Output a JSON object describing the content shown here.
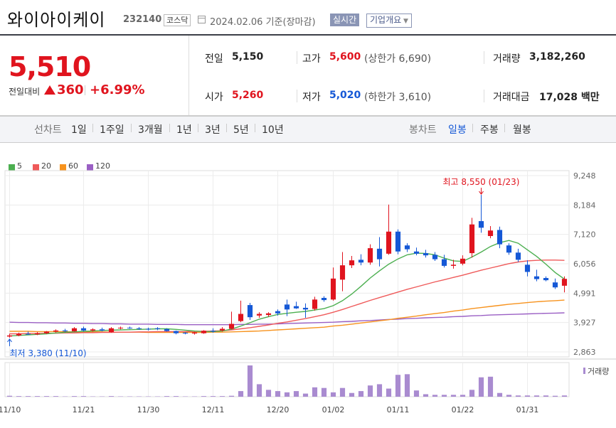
{
  "header": {
    "name": "와이아이케이",
    "code": "232140",
    "market": "코스닥",
    "date": "2024.02.06",
    "date_suffix": "기준(장마감)",
    "btn_realtime": "실시간",
    "btn_overview": "기업개요"
  },
  "price": {
    "current": "5,510",
    "change_label": "전일대비",
    "change_value": "360",
    "change_rate": "+6.99%"
  },
  "stats": {
    "prev_close_label": "전일",
    "prev_close": "5,150",
    "open_label": "시가",
    "open": "5,260",
    "high_label": "고가",
    "high": "5,600",
    "upper_limit": "(상한가 6,690)",
    "low_label": "저가",
    "low": "5,020",
    "lower_limit": "(하한가 3,610)",
    "volume_label": "거래량",
    "volume": "3,182,260",
    "amount_label": "거래대금",
    "amount": "17,028",
    "amount_unit": "백만"
  },
  "periods": {
    "line_head": "선차트",
    "line_items": [
      "1일",
      "1주일",
      "3개월",
      "1년",
      "3년",
      "5년",
      "10년"
    ],
    "candle_head": "봉차트",
    "candle_items": [
      "일봉",
      "주봉",
      "월봉"
    ],
    "candle_selected": "일봉"
  },
  "colors": {
    "up": "#e0141e",
    "down": "#1558d6",
    "ma5": "#4caf50",
    "ma20": "#ef5a5a",
    "ma60": "#f7931e",
    "ma120": "#9a5fc4",
    "volume": "#a98bd0"
  },
  "chart_data": {
    "type": "candlestick",
    "legend": [
      {
        "name": "5",
        "color": "#4caf50"
      },
      {
        "name": "20",
        "color": "#ef5a5a"
      },
      {
        "name": "60",
        "color": "#f7931e"
      },
      {
        "name": "120",
        "color": "#9a5fc4"
      }
    ],
    "ylim": [
      2863,
      9248
    ],
    "yticks": [
      "9,248",
      "8,184",
      "7,120",
      "6,056",
      "4,991",
      "3,927",
      "2,863"
    ],
    "xticks": [
      {
        "label": "11/10",
        "index": 0
      },
      {
        "label": "11/21",
        "index": 8
      },
      {
        "label": "11/30",
        "index": 15
      },
      {
        "label": "12/11",
        "index": 22
      },
      {
        "label": "12/20",
        "index": 29
      },
      {
        "label": "01/02",
        "index": 35
      },
      {
        "label": "01/11",
        "index": 42
      },
      {
        "label": "01/22",
        "index": 49
      },
      {
        "label": "01/31",
        "index": 56
      }
    ],
    "high_annotation": "최고 8,550 (01/23)",
    "low_annotation": "최저 3,380 (11/10)",
    "volume_label": "거래량",
    "candles": [
      {
        "o": 3420,
        "h": 3520,
        "l": 3380,
        "c": 3460
      },
      {
        "o": 3460,
        "h": 3560,
        "l": 3430,
        "c": 3520
      },
      {
        "o": 3520,
        "h": 3600,
        "l": 3480,
        "c": 3500
      },
      {
        "o": 3500,
        "h": 3580,
        "l": 3470,
        "c": 3540
      },
      {
        "o": 3540,
        "h": 3620,
        "l": 3510,
        "c": 3600
      },
      {
        "o": 3600,
        "h": 3680,
        "l": 3560,
        "c": 3640
      },
      {
        "o": 3640,
        "h": 3700,
        "l": 3580,
        "c": 3610
      },
      {
        "o": 3610,
        "h": 3760,
        "l": 3590,
        "c": 3720
      },
      {
        "o": 3720,
        "h": 3780,
        "l": 3600,
        "c": 3640
      },
      {
        "o": 3640,
        "h": 3720,
        "l": 3600,
        "c": 3680
      },
      {
        "o": 3680,
        "h": 3740,
        "l": 3610,
        "c": 3640
      },
      {
        "o": 3580,
        "h": 3760,
        "l": 3560,
        "c": 3720
      },
      {
        "o": 3720,
        "h": 3780,
        "l": 3680,
        "c": 3740
      },
      {
        "o": 3740,
        "h": 3780,
        "l": 3700,
        "c": 3720
      },
      {
        "o": 3720,
        "h": 3760,
        "l": 3660,
        "c": 3700
      },
      {
        "o": 3700,
        "h": 3740,
        "l": 3640,
        "c": 3680
      },
      {
        "o": 3720,
        "h": 3760,
        "l": 3650,
        "c": 3690
      },
      {
        "o": 3690,
        "h": 3720,
        "l": 3600,
        "c": 3620
      },
      {
        "o": 3620,
        "h": 3640,
        "l": 3500,
        "c": 3540
      },
      {
        "o": 3560,
        "h": 3580,
        "l": 3500,
        "c": 3530
      },
      {
        "o": 3530,
        "h": 3590,
        "l": 3490,
        "c": 3570
      },
      {
        "o": 3540,
        "h": 3650,
        "l": 3520,
        "c": 3630
      },
      {
        "o": 3630,
        "h": 3720,
        "l": 3560,
        "c": 3600
      },
      {
        "o": 3640,
        "h": 3760,
        "l": 3600,
        "c": 3700
      },
      {
        "o": 3700,
        "h": 4320,
        "l": 3680,
        "c": 3880
      },
      {
        "o": 3980,
        "h": 4720,
        "l": 3940,
        "c": 4240
      },
      {
        "o": 4560,
        "h": 4640,
        "l": 4020,
        "c": 4120
      },
      {
        "o": 4180,
        "h": 4300,
        "l": 4100,
        "c": 4240
      },
      {
        "o": 4200,
        "h": 4300,
        "l": 4140,
        "c": 4260
      },
      {
        "o": 4340,
        "h": 4400,
        "l": 4180,
        "c": 4260
      },
      {
        "o": 4580,
        "h": 4760,
        "l": 4160,
        "c": 4400
      },
      {
        "o": 4520,
        "h": 4680,
        "l": 4420,
        "c": 4440
      },
      {
        "o": 4460,
        "h": 4620,
        "l": 4100,
        "c": 4400
      },
      {
        "o": 4420,
        "h": 4860,
        "l": 4360,
        "c": 4760
      },
      {
        "o": 4820,
        "h": 4880,
        "l": 4680,
        "c": 4740
      },
      {
        "o": 4760,
        "h": 5920,
        "l": 4720,
        "c": 5520
      },
      {
        "o": 5480,
        "h": 6480,
        "l": 5060,
        "c": 6000
      },
      {
        "o": 6000,
        "h": 6340,
        "l": 5900,
        "c": 6180
      },
      {
        "o": 6200,
        "h": 6400,
        "l": 6000,
        "c": 6100
      },
      {
        "o": 6100,
        "h": 6760,
        "l": 6020,
        "c": 6620
      },
      {
        "o": 6600,
        "h": 7020,
        "l": 5960,
        "c": 6220
      },
      {
        "o": 6420,
        "h": 8200,
        "l": 6380,
        "c": 7220
      },
      {
        "o": 7220,
        "h": 7300,
        "l": 6400,
        "c": 6500
      },
      {
        "o": 6720,
        "h": 6800,
        "l": 6480,
        "c": 6580
      },
      {
        "o": 6500,
        "h": 6640,
        "l": 6360,
        "c": 6420
      },
      {
        "o": 6440,
        "h": 6560,
        "l": 6280,
        "c": 6360
      },
      {
        "o": 6380,
        "h": 6480,
        "l": 6160,
        "c": 6220
      },
      {
        "o": 6220,
        "h": 6380,
        "l": 5920,
        "c": 5980
      },
      {
        "o": 5980,
        "h": 6200,
        "l": 5880,
        "c": 6020
      },
      {
        "o": 6060,
        "h": 6360,
        "l": 6000,
        "c": 6240
      },
      {
        "o": 6440,
        "h": 7720,
        "l": 6280,
        "c": 7480
      },
      {
        "o": 7600,
        "h": 8550,
        "l": 7180,
        "c": 7360
      },
      {
        "o": 7060,
        "h": 7420,
        "l": 6980,
        "c": 7260
      },
      {
        "o": 7280,
        "h": 7400,
        "l": 6620,
        "c": 6760
      },
      {
        "o": 6720,
        "h": 6800,
        "l": 6380,
        "c": 6460
      },
      {
        "o": 6460,
        "h": 6600,
        "l": 6120,
        "c": 6200
      },
      {
        "o": 6020,
        "h": 6180,
        "l": 5600,
        "c": 5760
      },
      {
        "o": 5600,
        "h": 5840,
        "l": 5420,
        "c": 5500
      },
      {
        "o": 5540,
        "h": 5600,
        "l": 5420,
        "c": 5460
      },
      {
        "o": 5380,
        "h": 5520,
        "l": 5140,
        "c": 5200
      },
      {
        "o": 5260,
        "h": 5600,
        "l": 5020,
        "c": 5510
      }
    ],
    "ma5": [
      3440,
      3460,
      3480,
      3500,
      3520,
      3550,
      3570,
      3590,
      3610,
      3620,
      3640,
      3650,
      3660,
      3670,
      3680,
      3690,
      3700,
      3700,
      3680,
      3650,
      3620,
      3600,
      3600,
      3620,
      3690,
      3800,
      3920,
      4050,
      4140,
      4220,
      4260,
      4300,
      4330,
      4380,
      4430,
      4540,
      4720,
      4960,
      5240,
      5540,
      5800,
      6040,
      6230,
      6380,
      6440,
      6430,
      6380,
      6260,
      6160,
      6140,
      6300,
      6480,
      6680,
      6820,
      6900,
      6800,
      6560,
      6320,
      6040,
      5740,
      5500
    ],
    "ma20": [
      3520,
      3520,
      3530,
      3530,
      3540,
      3540,
      3550,
      3550,
      3560,
      3560,
      3570,
      3570,
      3580,
      3580,
      3590,
      3590,
      3600,
      3600,
      3600,
      3600,
      3610,
      3610,
      3620,
      3630,
      3660,
      3700,
      3740,
      3790,
      3840,
      3900,
      3950,
      4010,
      4070,
      4140,
      4210,
      4300,
      4400,
      4510,
      4620,
      4730,
      4830,
      4930,
      5030,
      5130,
      5220,
      5310,
      5400,
      5480,
      5560,
      5640,
      5730,
      5820,
      5900,
      5980,
      6060,
      6120,
      6160,
      6180,
      6190,
      6190,
      6180
    ],
    "ma60": [
      3610,
      3610,
      3610,
      3600,
      3600,
      3600,
      3600,
      3590,
      3590,
      3590,
      3590,
      3580,
      3580,
      3580,
      3580,
      3570,
      3570,
      3570,
      3570,
      3570,
      3570,
      3570,
      3580,
      3580,
      3590,
      3600,
      3610,
      3620,
      3640,
      3660,
      3680,
      3700,
      3720,
      3740,
      3760,
      3800,
      3830,
      3870,
      3910,
      3950,
      3990,
      4030,
      4080,
      4120,
      4160,
      4210,
      4250,
      4290,
      4340,
      4380,
      4430,
      4470,
      4510,
      4550,
      4590,
      4620,
      4650,
      4680,
      4700,
      4720,
      4740
    ],
    "ma120": [
      3940,
      3930,
      3930,
      3920,
      3920,
      3910,
      3910,
      3900,
      3900,
      3890,
      3890,
      3880,
      3880,
      3870,
      3870,
      3870,
      3860,
      3860,
      3860,
      3850,
      3850,
      3850,
      3850,
      3850,
      3850,
      3860,
      3860,
      3870,
      3870,
      3880,
      3890,
      3900,
      3910,
      3920,
      3930,
      3940,
      3960,
      3970,
      3990,
      4000,
      4020,
      4040,
      4050,
      4070,
      4080,
      4100,
      4110,
      4120,
      4140,
      4150,
      4170,
      4180,
      4200,
      4210,
      4220,
      4230,
      4240,
      4250,
      4260,
      4270,
      4280
    ],
    "volume": [
      0.03,
      0.02,
      0.02,
      0.02,
      0.02,
      0.02,
      0.01,
      0.02,
      0.02,
      0.01,
      0.01,
      0.02,
      0.01,
      0.01,
      0.01,
      0.01,
      0.01,
      0.02,
      0.02,
      0.01,
      0.01,
      0.02,
      0.02,
      0.02,
      0.03,
      0.18,
      1.0,
      0.4,
      0.22,
      0.18,
      0.14,
      0.18,
      0.1,
      0.3,
      0.28,
      0.14,
      0.28,
      0.12,
      0.18,
      0.36,
      0.4,
      0.26,
      0.7,
      0.72,
      0.2,
      0.08,
      0.06,
      0.06,
      0.06,
      0.06,
      0.22,
      0.62,
      0.64,
      0.12,
      0.06,
      0.04,
      0.04,
      0.04,
      0.04,
      0.03,
      0.04
    ]
  }
}
